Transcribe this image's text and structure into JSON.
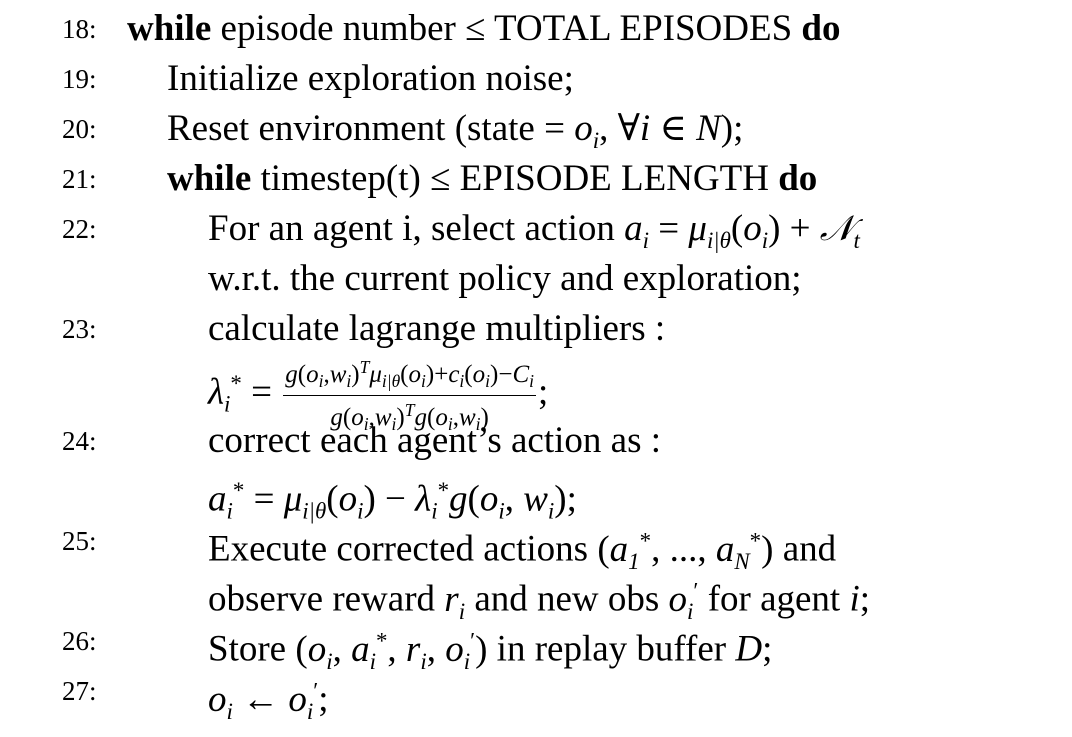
{
  "lines": {
    "l18": {
      "num": "18:",
      "kw_while": "while",
      "text": "episode number",
      "op": "≤",
      "bound": "TOTAL EPISODES",
      "kw_do": "do"
    },
    "l19": {
      "num": "19:",
      "text": "Initialize exploration noise;"
    },
    "l20": {
      "num": "20:",
      "text": "Reset environment (state = ",
      "o": "o",
      "i": "i",
      "forall": ", ∀",
      "i2": "i",
      "in": " ∈ ",
      "N": "N",
      "end": ");"
    },
    "l21": {
      "num": "21:",
      "kw_while": "while",
      "text": "timestep(t)",
      "op": "≤",
      "bound": "EPISODE LENGTH",
      "kw_do": "do"
    },
    "l22": {
      "num": "22:",
      "text": "For an agent i, select action",
      "formula": "a_i = μ_{i|θ}(o_i) + 𝒩_t"
    },
    "l22b": {
      "text": "w.r.t. the current policy and exploration;"
    },
    "l23": {
      "num": "23:",
      "text": "calculate lagrange multipliers :"
    },
    "l23b": {
      "lhs": "λ",
      "semi": ";"
    },
    "l24": {
      "num": "24:",
      "text": "correct each agent’s action as :"
    },
    "l24b": {
      "formula": "a_i* = μ_{i|θ}(o_i) − λ_i* g(o_i, w_i);"
    },
    "l25": {
      "num": "25:",
      "text": "Execute corrected actions",
      "tail": "and"
    },
    "l25b": {
      "t1": "observe reward",
      "t2": "and new obs",
      "t3": "for agent",
      "end": ";"
    },
    "l26": {
      "num": "26:",
      "text": "Store",
      "tail": "in replay buffer",
      "D": "D",
      "end": ";"
    },
    "l27": {
      "num": "27:",
      "end": ";"
    }
  }
}
